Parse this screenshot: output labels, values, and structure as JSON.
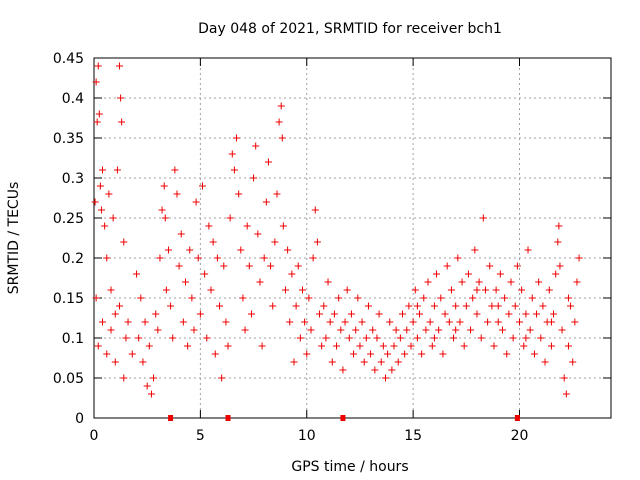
{
  "chart_data": {
    "type": "scatter",
    "title": "Day 048 of 2021, SRMTID for receiver bch1",
    "xlabel": "GPS time / hours",
    "ylabel": "SRMTID / TECUs",
    "xlim": [
      0,
      24.3
    ],
    "ylim": [
      0,
      0.45
    ],
    "grid": true,
    "x_ticks": [
      0,
      5,
      10,
      15,
      20
    ],
    "x_tick_labels": [
      "0",
      "5",
      "10",
      "15",
      "20"
    ],
    "y_ticks": [
      0,
      0.05,
      0.1,
      0.15,
      0.2,
      0.25,
      0.3,
      0.35,
      0.4,
      0.45
    ],
    "y_tick_labels": [
      "0",
      "0.05",
      "0.1",
      "0.15",
      "0.2",
      "0.25",
      "0.3",
      "0.35",
      "0.4",
      "0.45"
    ],
    "marker": "+",
    "marker_color": "#ee0000",
    "baseline_markers_x": [
      3.6,
      6.3,
      11.7,
      19.9
    ],
    "series": [
      {
        "name": "SRMTID",
        "points": [
          [
            0.05,
            0.27
          ],
          [
            0.1,
            0.42
          ],
          [
            0.15,
            0.37
          ],
          [
            0.2,
            0.44
          ],
          [
            0.25,
            0.38
          ],
          [
            0.3,
            0.29
          ],
          [
            0.35,
            0.26
          ],
          [
            0.4,
            0.31
          ],
          [
            0.5,
            0.24
          ],
          [
            0.6,
            0.2
          ],
          [
            0.7,
            0.28
          ],
          [
            0.8,
            0.16
          ],
          [
            0.9,
            0.25
          ],
          [
            1.0,
            0.13
          ],
          [
            1.1,
            0.31
          ],
          [
            1.2,
            0.44
          ],
          [
            1.25,
            0.4
          ],
          [
            1.3,
            0.37
          ],
          [
            1.4,
            0.22
          ],
          [
            1.5,
            0.1
          ],
          [
            0.1,
            0.15
          ],
          [
            0.2,
            0.09
          ],
          [
            0.4,
            0.12
          ],
          [
            0.6,
            0.08
          ],
          [
            0.8,
            0.11
          ],
          [
            1.0,
            0.07
          ],
          [
            1.2,
            0.14
          ],
          [
            1.4,
            0.05
          ],
          [
            1.6,
            0.12
          ],
          [
            1.8,
            0.08
          ],
          [
            2.0,
            0.18
          ],
          [
            2.1,
            0.1
          ],
          [
            2.2,
            0.15
          ],
          [
            2.3,
            0.07
          ],
          [
            2.4,
            0.12
          ],
          [
            2.5,
            0.04
          ],
          [
            2.6,
            0.09
          ],
          [
            2.7,
            0.03
          ],
          [
            2.8,
            0.05
          ],
          [
            2.9,
            0.13
          ],
          [
            3.0,
            0.11
          ],
          [
            3.1,
            0.2
          ],
          [
            3.2,
            0.26
          ],
          [
            3.3,
            0.29
          ],
          [
            3.35,
            0.25
          ],
          [
            3.4,
            0.16
          ],
          [
            3.5,
            0.21
          ],
          [
            3.6,
            0.14
          ],
          [
            3.7,
            0.1
          ],
          [
            3.8,
            0.31
          ],
          [
            3.9,
            0.28
          ],
          [
            4.0,
            0.19
          ],
          [
            4.1,
            0.23
          ],
          [
            4.2,
            0.12
          ],
          [
            4.3,
            0.17
          ],
          [
            4.4,
            0.09
          ],
          [
            4.5,
            0.21
          ],
          [
            4.6,
            0.15
          ],
          [
            4.7,
            0.11
          ],
          [
            4.8,
            0.27
          ],
          [
            4.9,
            0.2
          ],
          [
            5.0,
            0.13
          ],
          [
            5.1,
            0.29
          ],
          [
            5.2,
            0.18
          ],
          [
            5.3,
            0.1
          ],
          [
            5.4,
            0.24
          ],
          [
            5.5,
            0.16
          ],
          [
            5.6,
            0.22
          ],
          [
            5.7,
            0.08
          ],
          [
            5.8,
            0.2
          ],
          [
            5.9,
            0.14
          ],
          [
            6.0,
            0.05
          ],
          [
            6.1,
            0.19
          ],
          [
            6.2,
            0.12
          ],
          [
            6.3,
            0.09
          ],
          [
            6.4,
            0.25
          ],
          [
            6.5,
            0.33
          ],
          [
            6.6,
            0.31
          ],
          [
            6.7,
            0.35
          ],
          [
            6.8,
            0.28
          ],
          [
            6.9,
            0.21
          ],
          [
            7.0,
            0.15
          ],
          [
            7.1,
            0.11
          ],
          [
            7.2,
            0.24
          ],
          [
            7.3,
            0.19
          ],
          [
            7.4,
            0.13
          ],
          [
            7.5,
            0.3
          ],
          [
            7.6,
            0.34
          ],
          [
            7.7,
            0.23
          ],
          [
            7.8,
            0.17
          ],
          [
            7.9,
            0.09
          ],
          [
            8.0,
            0.2
          ],
          [
            8.1,
            0.27
          ],
          [
            8.2,
            0.32
          ],
          [
            8.3,
            0.19
          ],
          [
            8.4,
            0.14
          ],
          [
            8.5,
            0.22
          ],
          [
            8.6,
            0.28
          ],
          [
            8.7,
            0.37
          ],
          [
            8.8,
            0.39
          ],
          [
            8.85,
            0.35
          ],
          [
            8.9,
            0.24
          ],
          [
            9.0,
            0.16
          ],
          [
            9.1,
            0.21
          ],
          [
            9.2,
            0.12
          ],
          [
            9.3,
            0.18
          ],
          [
            9.4,
            0.07
          ],
          [
            9.5,
            0.14
          ],
          [
            9.6,
            0.19
          ],
          [
            9.7,
            0.1
          ],
          [
            9.8,
            0.16
          ],
          [
            9.9,
            0.12
          ],
          [
            10.0,
            0.08
          ],
          [
            10.1,
            0.15
          ],
          [
            10.2,
            0.11
          ],
          [
            10.3,
            0.2
          ],
          [
            10.4,
            0.26
          ],
          [
            10.5,
            0.22
          ],
          [
            10.6,
            0.13
          ],
          [
            10.7,
            0.09
          ],
          [
            10.8,
            0.14
          ],
          [
            10.9,
            0.1
          ],
          [
            11.0,
            0.17
          ],
          [
            11.1,
            0.12
          ],
          [
            11.2,
            0.07
          ],
          [
            11.3,
            0.13
          ],
          [
            11.4,
            0.09
          ],
          [
            11.5,
            0.15
          ],
          [
            11.6,
            0.11
          ],
          [
            11.7,
            0.06
          ],
          [
            11.8,
            0.12
          ],
          [
            11.9,
            0.16
          ],
          [
            12.0,
            0.1
          ],
          [
            12.1,
            0.13
          ],
          [
            12.2,
            0.08
          ],
          [
            12.3,
            0.11
          ],
          [
            12.4,
            0.15
          ],
          [
            12.5,
            0.09
          ],
          [
            12.6,
            0.12
          ],
          [
            12.7,
            0.07
          ],
          [
            12.8,
            0.1
          ],
          [
            12.9,
            0.14
          ],
          [
            13.0,
            0.08
          ],
          [
            13.1,
            0.11
          ],
          [
            13.2,
            0.06
          ],
          [
            13.3,
            0.1
          ],
          [
            13.4,
            0.13
          ],
          [
            13.5,
            0.07
          ],
          [
            13.6,
            0.09
          ],
          [
            13.7,
            0.05
          ],
          [
            13.8,
            0.08
          ],
          [
            13.9,
            0.12
          ],
          [
            14.0,
            0.06
          ],
          [
            14.1,
            0.09
          ],
          [
            14.2,
            0.11
          ],
          [
            14.3,
            0.07
          ],
          [
            14.4,
            0.1
          ],
          [
            14.5,
            0.13
          ],
          [
            14.6,
            0.08
          ],
          [
            14.7,
            0.11
          ],
          [
            14.8,
            0.14
          ],
          [
            14.9,
            0.09
          ],
          [
            15.0,
            0.12
          ],
          [
            15.1,
            0.16
          ],
          [
            15.2,
            0.1
          ],
          [
            15.3,
            0.13
          ],
          [
            15.4,
            0.08
          ],
          [
            15.5,
            0.15
          ],
          [
            15.6,
            0.11
          ],
          [
            15.7,
            0.17
          ],
          [
            15.8,
            0.12
          ],
          [
            15.9,
            0.09
          ],
          [
            16.0,
            0.14
          ],
          [
            16.1,
            0.18
          ],
          [
            16.2,
            0.11
          ],
          [
            16.3,
            0.15
          ],
          [
            16.4,
            0.08
          ],
          [
            16.5,
            0.13
          ],
          [
            16.6,
            0.19
          ],
          [
            16.7,
            0.12
          ],
          [
            16.8,
            0.16
          ],
          [
            16.9,
            0.1
          ],
          [
            17.0,
            0.14
          ],
          [
            17.1,
            0.2
          ],
          [
            17.2,
            0.12
          ],
          [
            17.3,
            0.17
          ],
          [
            17.4,
            0.09
          ],
          [
            17.5,
            0.14
          ],
          [
            17.6,
            0.18
          ],
          [
            17.7,
            0.11
          ],
          [
            17.8,
            0.15
          ],
          [
            17.9,
            0.21
          ],
          [
            18.0,
            0.13
          ],
          [
            18.1,
            0.17
          ],
          [
            18.2,
            0.1
          ],
          [
            18.3,
            0.25
          ],
          [
            18.4,
            0.16
          ],
          [
            18.5,
            0.12
          ],
          [
            18.6,
            0.19
          ],
          [
            18.7,
            0.14
          ],
          [
            18.8,
            0.09
          ],
          [
            18.9,
            0.16
          ],
          [
            19.0,
            0.12
          ],
          [
            19.1,
            0.18
          ],
          [
            19.2,
            0.11
          ],
          [
            19.3,
            0.15
          ],
          [
            19.4,
            0.08
          ],
          [
            19.5,
            0.13
          ],
          [
            19.6,
            0.17
          ],
          [
            19.7,
            0.1
          ],
          [
            19.8,
            0.14
          ],
          [
            19.9,
            0.19
          ],
          [
            20.0,
            0.12
          ],
          [
            20.1,
            0.16
          ],
          [
            20.2,
            0.09
          ],
          [
            20.3,
            0.13
          ],
          [
            20.4,
            0.21
          ],
          [
            20.5,
            0.11
          ],
          [
            20.6,
            0.15
          ],
          [
            20.7,
            0.08
          ],
          [
            20.8,
            0.13
          ],
          [
            20.9,
            0.17
          ],
          [
            21.0,
            0.1
          ],
          [
            21.1,
            0.14
          ],
          [
            21.2,
            0.07
          ],
          [
            21.3,
            0.12
          ],
          [
            21.4,
            0.16
          ],
          [
            21.5,
            0.09
          ],
          [
            21.6,
            0.13
          ],
          [
            21.7,
            0.18
          ],
          [
            21.8,
            0.22
          ],
          [
            21.85,
            0.24
          ],
          [
            21.9,
            0.19
          ],
          [
            22.0,
            0.11
          ],
          [
            22.1,
            0.05
          ],
          [
            22.2,
            0.03
          ],
          [
            22.3,
            0.09
          ],
          [
            22.4,
            0.14
          ],
          [
            22.5,
            0.07
          ],
          [
            22.6,
            0.12
          ],
          [
            22.7,
            0.17
          ],
          [
            22.8,
            0.2
          ],
          [
            22.3,
            0.15
          ],
          [
            21.5,
            0.12
          ],
          [
            20.3,
            0.1
          ],
          [
            19.0,
            0.14
          ],
          [
            18.0,
            0.16
          ],
          [
            17.0,
            0.11
          ],
          [
            16.0,
            0.1
          ],
          [
            15.2,
            0.14
          ]
        ]
      }
    ]
  }
}
